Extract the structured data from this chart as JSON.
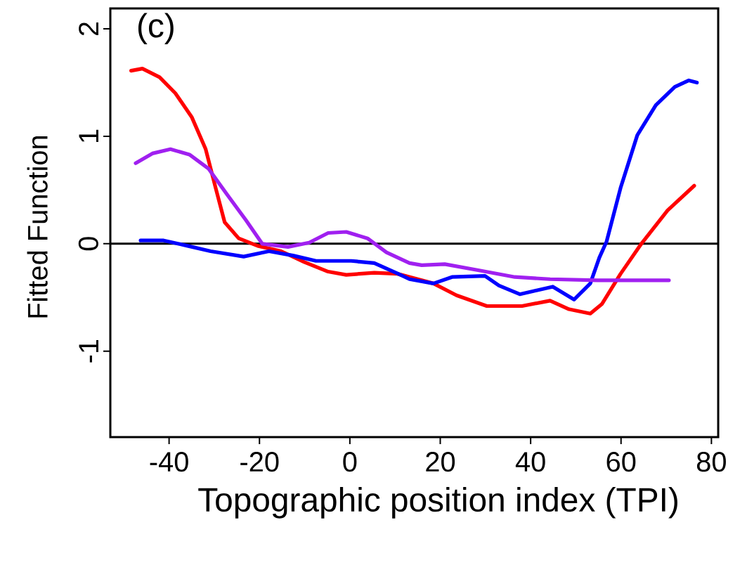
{
  "chart_data": {
    "type": "line",
    "xlabel": "Topographic position index (TPI)",
    "ylabel": "Fitted Function",
    "annotations": [
      "(c)"
    ],
    "xlim": [
      -53,
      81.5
    ],
    "ylim": [
      -1.8,
      2.19
    ],
    "xticks": [
      -40,
      -20,
      0,
      20,
      40,
      60,
      80
    ],
    "yticks": [
      -1,
      0,
      1,
      2
    ],
    "ref_lines": [
      {
        "axis": "y",
        "value": 0,
        "color": "#000000"
      }
    ],
    "series": [
      {
        "color": "#ff0000",
        "x": [
          -48.4,
          -45.9,
          -42.1,
          -38.6,
          -35.0,
          -31.9,
          -29.7,
          -27.7,
          -24.6,
          -20.4,
          -15.2,
          -10.1,
          -4.8,
          -0.8,
          5.4,
          10.5,
          18.5,
          23.6,
          30.3,
          38.1,
          44.3,
          48.5,
          53.2,
          55.8,
          59.9,
          64.5,
          70.3,
          76.2
        ],
        "values": [
          1.61,
          1.63,
          1.55,
          1.4,
          1.18,
          0.88,
          0.52,
          0.2,
          0.05,
          -0.02,
          -0.07,
          -0.17,
          -0.26,
          -0.29,
          -0.27,
          -0.28,
          -0.37,
          -0.48,
          -0.58,
          -0.58,
          -0.53,
          -0.61,
          -0.65,
          -0.56,
          -0.28,
          0.0,
          0.31,
          0.54
        ]
      },
      {
        "color": "#0000ff",
        "x": [
          -46.3,
          -41.2,
          -35.9,
          -30.8,
          -23.5,
          -17.9,
          -12.6,
          -7.5,
          0.3,
          5.4,
          10.7,
          13.2,
          18.5,
          22.6,
          29.9,
          33.0,
          37.6,
          44.9,
          49.6,
          53.2,
          55.2,
          56.8,
          59.9,
          63.6,
          67.7,
          71.9,
          75.0,
          76.8
        ],
        "values": [
          0.03,
          0.03,
          -0.02,
          -0.07,
          -0.12,
          -0.07,
          -0.11,
          -0.16,
          -0.16,
          -0.18,
          -0.28,
          -0.33,
          -0.37,
          -0.31,
          -0.3,
          -0.39,
          -0.47,
          -0.4,
          -0.52,
          -0.37,
          -0.13,
          0.02,
          0.52,
          1.01,
          1.29,
          1.46,
          1.52,
          1.5
        ]
      },
      {
        "color": "#a020f0",
        "x": [
          -47.4,
          -43.7,
          -39.7,
          -35.5,
          -31.3,
          -27.2,
          -23.0,
          -19.4,
          -13.7,
          -9.0,
          -4.8,
          -0.8,
          3.9,
          8.1,
          13.2,
          15.9,
          21.0,
          28.8,
          36.5,
          44.3,
          54.7,
          65.2,
          70.6
        ],
        "values": [
          0.75,
          0.84,
          0.88,
          0.83,
          0.7,
          0.46,
          0.22,
          0.0,
          -0.03,
          0.01,
          0.1,
          0.11,
          0.05,
          -0.08,
          -0.18,
          -0.2,
          -0.19,
          -0.25,
          -0.31,
          -0.33,
          -0.34,
          -0.34,
          -0.34
        ]
      }
    ]
  }
}
